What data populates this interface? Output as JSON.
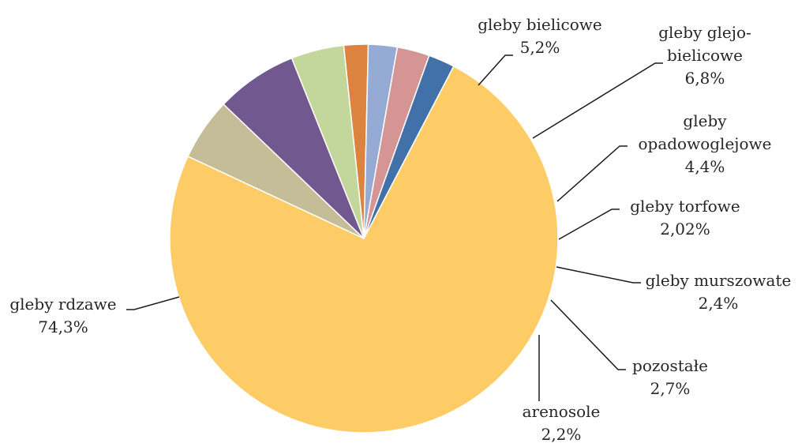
{
  "chart_data": {
    "type": "pie",
    "title": "",
    "slices": [
      {
        "label": [
          "gleby bielicowe"
        ],
        "value_label": "5,2%",
        "value": 5.2,
        "color": "#C4BD97"
      },
      {
        "label": [
          "gleby glejo-",
          "bielicowe"
        ],
        "value_label": "6,8%",
        "value": 6.8,
        "color": "#71588F"
      },
      {
        "label": [
          "gleby",
          "opadowoglejowe"
        ],
        "value_label": "4,4%",
        "value": 4.4,
        "color": "#C3D69B"
      },
      {
        "label": [
          "gleby torfowe"
        ],
        "value_label": "2,02%",
        "value": 2.02,
        "color": "#DD8340"
      },
      {
        "label": [
          "gleby murszowate"
        ],
        "value_label": "2,4%",
        "value": 2.4,
        "color": "#95ABD4"
      },
      {
        "label": [
          "pozostałe"
        ],
        "value_label": "2,7%",
        "value": 2.7,
        "color": "#D49594"
      },
      {
        "label": [
          "arenosole"
        ],
        "value_label": "2,2%",
        "value": 2.2,
        "color": "#4271A9"
      },
      {
        "label": [
          "gleby rdzawe"
        ],
        "value_label": "74,3%",
        "value": 74.3,
        "color": "#FECC66"
      }
    ]
  }
}
